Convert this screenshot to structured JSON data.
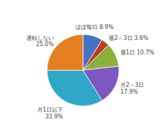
{
  "chart_data": {
    "type": "pie",
    "categories": [
      "ほぼ毎日 8.9%",
      "週2～3日 3.6%",
      "週1日 10.7%",
      "月2～3日\n17.9%",
      "月1日以下\n33.9%",
      "運転しない\n25.0%"
    ],
    "values": [
      8.9,
      3.6,
      10.7,
      17.9,
      33.9,
      25.0
    ],
    "colors": [
      "#4472c4",
      "#c0392b",
      "#8db03a",
      "#7e57c2",
      "#2fa8c8",
      "#e67e22"
    ]
  }
}
